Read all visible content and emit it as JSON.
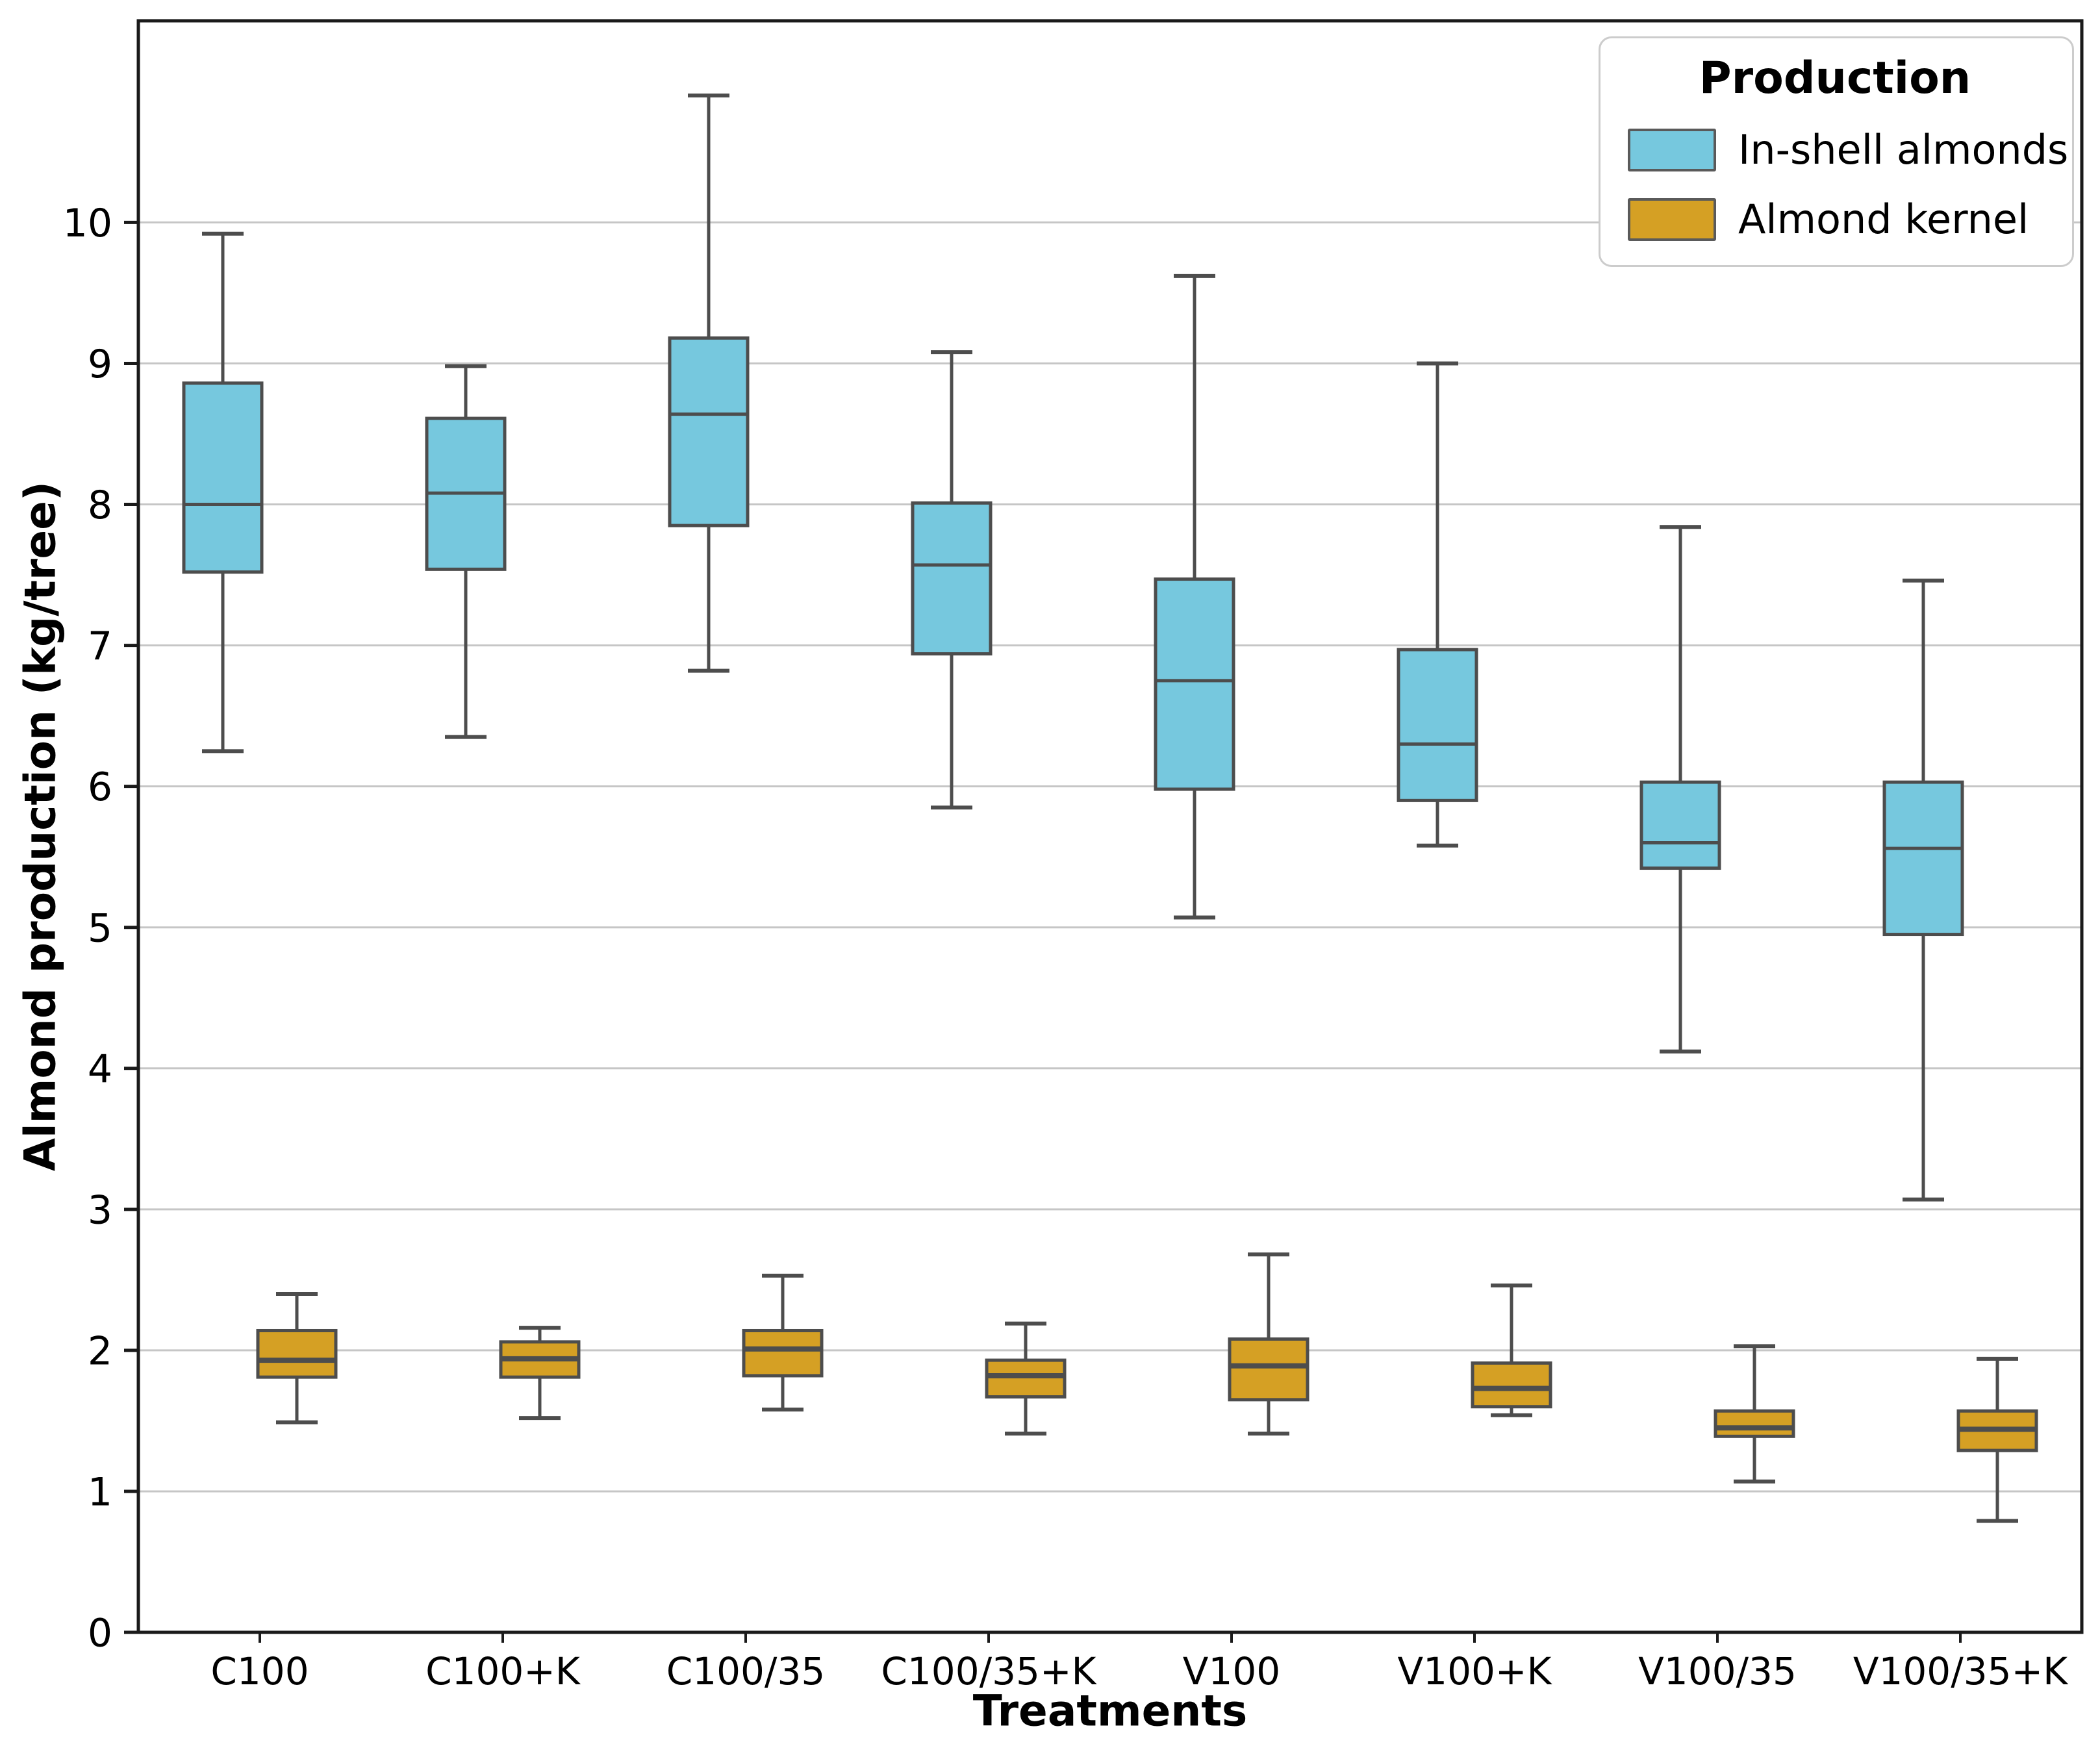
{
  "figure": {
    "background": "#ffffff",
    "frame_color": "#1a1a1a",
    "grid_color": "#c6c6c6"
  },
  "chart_data": {
    "type": "boxplot",
    "title": "",
    "xlabel": "Treatments",
    "ylabel": "Almond production (kg/tree)",
    "categories": [
      "C100",
      "C100+K",
      "C100/35",
      "C100/35+K",
      "V100",
      "V100+K",
      "V100/35",
      "V100/35+K"
    ],
    "y_ticks": [
      0,
      1,
      2,
      3,
      4,
      5,
      6,
      7,
      8,
      9,
      10
    ],
    "ylim": [
      0,
      11.43
    ],
    "grid": "horizontal",
    "edge_color": "#4d4d4d",
    "legend": {
      "title": "Production",
      "position": "top-right"
    },
    "series": [
      {
        "name": "In-shell almonds",
        "color": "#76c8de",
        "boxes": [
          {
            "whislo": 6.25,
            "q1": 7.52,
            "med": 8.0,
            "q3": 8.86,
            "whishi": 9.92
          },
          {
            "whislo": 6.35,
            "q1": 7.54,
            "med": 8.08,
            "q3": 8.61,
            "whishi": 8.98
          },
          {
            "whislo": 6.82,
            "q1": 7.85,
            "med": 8.64,
            "q3": 9.18,
            "whishi": 10.9
          },
          {
            "whislo": 5.85,
            "q1": 6.94,
            "med": 7.57,
            "q3": 8.01,
            "whishi": 9.08
          },
          {
            "whislo": 5.07,
            "q1": 5.98,
            "med": 6.75,
            "q3": 7.47,
            "whishi": 9.62
          },
          {
            "whislo": 5.58,
            "q1": 5.9,
            "med": 6.3,
            "q3": 6.97,
            "whishi": 9.0
          },
          {
            "whislo": 4.12,
            "q1": 5.42,
            "med": 5.6,
            "q3": 6.03,
            "whishi": 7.84
          },
          {
            "whislo": 3.07,
            "q1": 4.95,
            "med": 5.56,
            "q3": 6.03,
            "whishi": 7.46
          }
        ]
      },
      {
        "name": "Almond kernel",
        "color": "#d5a024",
        "boxes": [
          {
            "whislo": 1.49,
            "q1": 1.81,
            "med": 1.93,
            "q3": 2.14,
            "whishi": 2.4
          },
          {
            "whislo": 1.52,
            "q1": 1.81,
            "med": 1.94,
            "q3": 2.06,
            "whishi": 2.16
          },
          {
            "whislo": 1.58,
            "q1": 1.82,
            "med": 2.01,
            "q3": 2.14,
            "whishi": 2.53
          },
          {
            "whislo": 1.41,
            "q1": 1.67,
            "med": 1.82,
            "q3": 1.93,
            "whishi": 2.19
          },
          {
            "whislo": 1.41,
            "q1": 1.65,
            "med": 1.89,
            "q3": 2.08,
            "whishi": 2.68
          },
          {
            "whislo": 1.54,
            "q1": 1.6,
            "med": 1.73,
            "q3": 1.91,
            "whishi": 2.46
          },
          {
            "whislo": 1.07,
            "q1": 1.39,
            "med": 1.45,
            "q3": 1.57,
            "whishi": 2.03
          },
          {
            "whislo": 0.79,
            "q1": 1.29,
            "med": 1.44,
            "q3": 1.57,
            "whishi": 1.94
          }
        ]
      }
    ]
  }
}
